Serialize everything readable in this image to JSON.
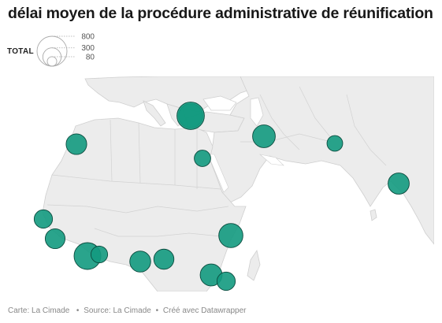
{
  "title": "délai moyen de la procédure administrative de réunification",
  "legend": {
    "label": "TOTAL",
    "values": [
      800,
      300,
      80
    ]
  },
  "footer": {
    "map_credit": "Carte: La Cimade",
    "source": "Source: La Cimade",
    "created": "Créé avec Datawrapper"
  },
  "colors": {
    "bubble_fill": "#139A80",
    "bubble_stroke": "#0b4b3e",
    "land": "#ececec",
    "water": "#ffffff",
    "border": "#cfcfcf",
    "legend_stroke": "#aaaaaa"
  },
  "chart_data": {
    "type": "bubble-map",
    "size_metric": "TOTAL",
    "points": [
      {
        "value": 520
      },
      {
        "value": 380
      },
      {
        "value": 460
      },
      {
        "value": 220
      },
      {
        "value": 240
      },
      {
        "value": 400
      },
      {
        "value": 300
      },
      {
        "value": 350
      },
      {
        "value": 640
      },
      {
        "value": 250
      },
      {
        "value": 390
      },
      {
        "value": 360
      },
      {
        "value": 520
      },
      {
        "value": 430
      },
      {
        "value": 300
      },
      {
        "value": 670
      }
    ]
  }
}
